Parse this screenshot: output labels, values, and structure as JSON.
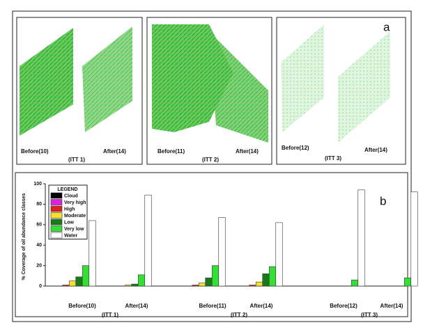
{
  "panel_a": {
    "letter": "a",
    "boxes": [
      {
        "before": "Before(10)",
        "after": "After(14)",
        "group": "(ITT 1)"
      },
      {
        "before": "Before(11)",
        "after": "After(14)",
        "group": "(ITT 2)"
      },
      {
        "before": "Before(12)",
        "after": "After(14)",
        "group": "(ITT 3)"
      }
    ]
  },
  "chart_data": {
    "type": "bar",
    "letter": "b",
    "y_label": "% Coverage of oil abundance classes",
    "categories": [
      "Before(10)",
      "After(14)",
      "Before(11)",
      "After(14)",
      "Before(12)",
      "After(14)"
    ],
    "groups": [
      "(ITT 1)",
      "(ITT 2)",
      "(ITT 3)"
    ],
    "legend_title": "LEGEND",
    "legend": "upper left",
    "ylim": [
      0,
      100
    ],
    "yticks": [
      0,
      20,
      40,
      60,
      80,
      100
    ],
    "series": [
      {
        "name": "Cloud",
        "color": "#000000",
        "values": [
          0,
          0,
          0,
          0,
          0,
          0
        ]
      },
      {
        "name": "Very high",
        "color": "#e020e0",
        "values": [
          0,
          0,
          0,
          0,
          0,
          0
        ]
      },
      {
        "name": "High",
        "color": "#e02020",
        "values": [
          1,
          0,
          1,
          1,
          0,
          0
        ]
      },
      {
        "name": "Moderate",
        "color": "#f5e030",
        "values": [
          5,
          1,
          3,
          4,
          0,
          0
        ]
      },
      {
        "name": "Low",
        "color": "#1a7a1a",
        "values": [
          9,
          2,
          8,
          12,
          0,
          0
        ]
      },
      {
        "name": "Very low",
        "color": "#33e033",
        "values": [
          20,
          11,
          20,
          19,
          6,
          8
        ]
      },
      {
        "name": "Water",
        "color": "#ffffff",
        "values": [
          64,
          89,
          67,
          62,
          94,
          92
        ]
      }
    ]
  }
}
